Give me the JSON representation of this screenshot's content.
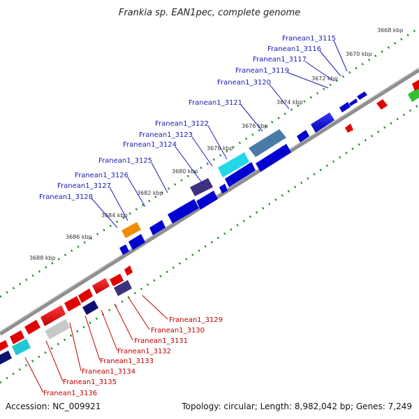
{
  "title": "Frankia sp. EAN1pec, complete genome",
  "accession_text": "Accession: NC_009921",
  "summary_text": "Topology: circular; Length: 8,982,042 bp; Genes: 7,249",
  "colors": {
    "backbone": "#8f8f8f",
    "tick_green": "#1f8a1f",
    "forward_label": "#1a1ab5",
    "reverse_label": "#c00000"
  },
  "kbp_labels": [
    "3668 kbp",
    "3670 kbp",
    "3672 kbp",
    "3674 kbp",
    "3676 kbp",
    "3678 kbp",
    "3680 kbp",
    "3682 kbp",
    "3684 kbp",
    "3686 kbp",
    "3688 kbp"
  ],
  "forward_genes": [
    "Franean1_3115",
    "Franean1_3116",
    "Franean1_3117",
    "Franean1_3119",
    "Franean1_3120",
    "Franean1_3121",
    "Franean1_3122",
    "Franean1_3123",
    "Franean1_3124",
    "Franean1_3125",
    "Franean1_3126",
    "Franean1_3127",
    "Franean1_3128"
  ],
  "reverse_genes": [
    "Franean1_3129",
    "Franean1_3130",
    "Franean1_3131",
    "Franean1_3132",
    "Franean1_3133",
    "Franean1_3134",
    "Franean1_3135",
    "Franean1_3136"
  ]
}
